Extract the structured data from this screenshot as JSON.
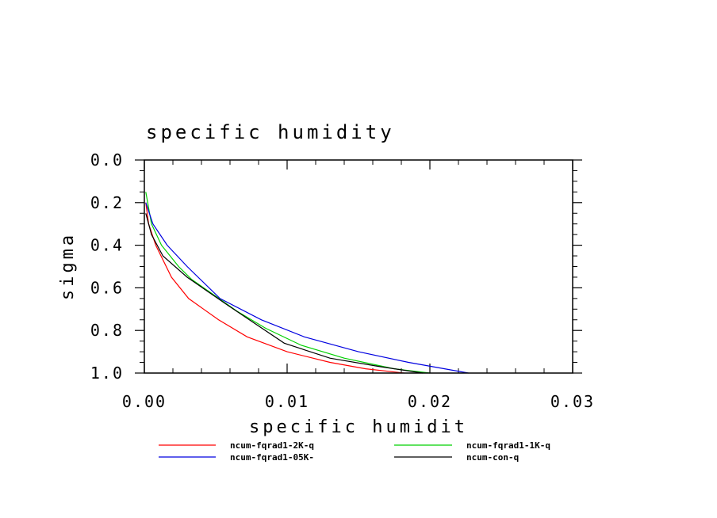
{
  "chart_data": {
    "type": "line",
    "title": "specific humidity",
    "xlabel": "specific humidit",
    "ylabel": "sigma",
    "xlim": [
      0,
      0.03
    ],
    "ylim": [
      0,
      1.0
    ],
    "y_inverted": true,
    "x_ticks": [
      "0.00",
      "0.01",
      "0.02",
      "0.03"
    ],
    "y_ticks": [
      "0.0",
      "0.2",
      "0.4",
      "0.6",
      "0.8",
      "1.0"
    ],
    "grid": false,
    "legend_position": "bottom",
    "series": [
      {
        "name": "ncum-fqrad1-2K-q",
        "color": "#ff0000",
        "x": [
          0.0001,
          0.0003,
          0.0008,
          0.0019,
          0.0031,
          0.0052,
          0.0072,
          0.01,
          0.013,
          0.0155,
          0.0182
        ],
        "y": [
          0.2,
          0.3,
          0.4,
          0.55,
          0.65,
          0.75,
          0.83,
          0.9,
          0.95,
          0.98,
          1.0
        ]
      },
      {
        "name": "ncum-fqrad1-1K-q",
        "color": "#00d000",
        "x": [
          0.0001,
          0.0005,
          0.0012,
          0.0024,
          0.0033,
          0.0048,
          0.0065,
          0.0085,
          0.011,
          0.014,
          0.0175,
          0.02
        ],
        "y": [
          0.15,
          0.3,
          0.4,
          0.5,
          0.56,
          0.63,
          0.71,
          0.79,
          0.87,
          0.93,
          0.98,
          1.0
        ]
      },
      {
        "name": "ncum-fqrad1-05K-",
        "color": "#0000e0",
        "x": [
          0.0001,
          0.0006,
          0.0016,
          0.003,
          0.0053,
          0.0082,
          0.0112,
          0.015,
          0.0185,
          0.0227
        ],
        "y": [
          0.2,
          0.3,
          0.4,
          0.5,
          0.65,
          0.75,
          0.83,
          0.9,
          0.95,
          1.0
        ]
      },
      {
        "name": "ncum-con-q",
        "color": "#000000",
        "x": [
          0.0001,
          0.0005,
          0.0013,
          0.003,
          0.0058,
          0.0078,
          0.0098,
          0.013,
          0.0165,
          0.0195
        ],
        "y": [
          0.25,
          0.35,
          0.45,
          0.55,
          0.68,
          0.77,
          0.86,
          0.93,
          0.97,
          1.0
        ]
      }
    ]
  }
}
